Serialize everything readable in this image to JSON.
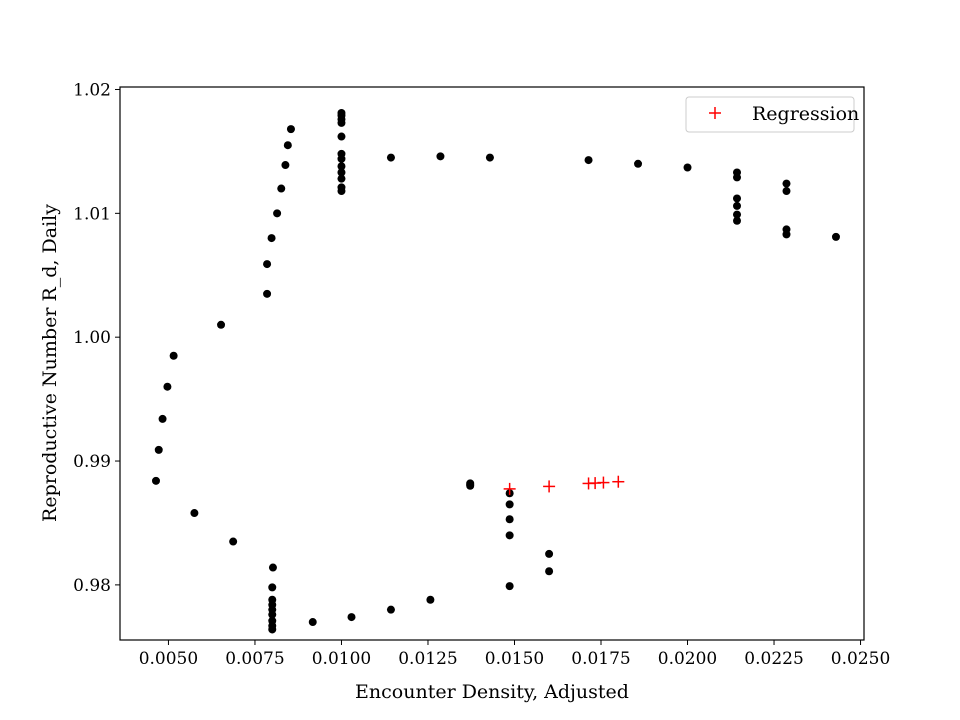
{
  "chart_data": {
    "type": "scatter",
    "xlabel": "Encounter Density, Adjusted",
    "ylabel": "Reproductive Number R_d, Daily",
    "xlim": [
      0.0036,
      0.0251
    ],
    "ylim": [
      0.97555,
      1.0202
    ],
    "xticks": [
      {
        "value": 0.005,
        "label": "0.0050"
      },
      {
        "value": 0.0075,
        "label": "0.0075"
      },
      {
        "value": 0.01,
        "label": "0.0100"
      },
      {
        "value": 0.0125,
        "label": "0.0125"
      },
      {
        "value": 0.015,
        "label": "0.0150"
      },
      {
        "value": 0.0175,
        "label": "0.0175"
      },
      {
        "value": 0.02,
        "label": "0.0200"
      },
      {
        "value": 0.0225,
        "label": "0.0225"
      },
      {
        "value": 0.025,
        "label": "0.0250"
      }
    ],
    "yticks": [
      {
        "value": 0.98,
        "label": "0.98"
      },
      {
        "value": 0.99,
        "label": "0.99"
      },
      {
        "value": 1.0,
        "label": "1.00"
      },
      {
        "value": 1.01,
        "label": "1.01"
      },
      {
        "value": 1.02,
        "label": "1.02"
      }
    ],
    "legend": {
      "position": "top-right",
      "entries": [
        "Regression"
      ]
    },
    "grid": false,
    "series": [
      {
        "color": "#000000",
        "marker": "dot",
        "points": [
          [
            0.01,
            1.0181
          ],
          [
            0.01,
            1.0179
          ],
          [
            0.01,
            1.0176
          ],
          [
            0.01,
            1.0173
          ],
          [
            0.01,
            1.0162
          ],
          [
            0.01,
            1.0148
          ],
          [
            0.01,
            1.0144
          ],
          [
            0.01,
            1.0138
          ],
          [
            0.01,
            1.0133
          ],
          [
            0.01,
            1.0128
          ],
          [
            0.01,
            1.0121
          ],
          [
            0.01,
            1.0118
          ],
          [
            0.00854,
            1.0168
          ],
          [
            0.00845,
            1.0155
          ],
          [
            0.00838,
            1.0139
          ],
          [
            0.00826,
            1.012
          ],
          [
            0.00814,
            1.01
          ],
          [
            0.00798,
            1.008
          ],
          [
            0.00785,
            1.0059
          ],
          [
            0.00785,
            1.0035
          ],
          [
            0.00652,
            1.001
          ],
          [
            0.00515,
            0.9985
          ],
          [
            0.00497,
            0.996
          ],
          [
            0.00483,
            0.9934
          ],
          [
            0.00472,
            0.9909
          ],
          [
            0.00464,
            0.9884
          ],
          [
            0.00575,
            0.9858
          ],
          [
            0.00687,
            0.9835
          ],
          [
            0.00802,
            0.9814
          ],
          [
            0.008,
            0.9798
          ],
          [
            0.008,
            0.9788
          ],
          [
            0.008,
            0.9784
          ],
          [
            0.008,
            0.978
          ],
          [
            0.008,
            0.9776
          ],
          [
            0.008,
            0.9771
          ],
          [
            0.008,
            0.9767
          ],
          [
            0.008,
            0.9764
          ],
          [
            0.00917,
            0.977
          ],
          [
            0.01029,
            0.9774
          ],
          [
            0.01143,
            0.978
          ],
          [
            0.01257,
            0.9788
          ],
          [
            0.01372,
            0.9882
          ],
          [
            0.01372,
            0.9881
          ],
          [
            0.01372,
            0.988
          ],
          [
            0.01486,
            0.9874
          ],
          [
            0.01486,
            0.9865
          ],
          [
            0.01486,
            0.9853
          ],
          [
            0.01486,
            0.984
          ],
          [
            0.01486,
            0.9799
          ],
          [
            0.016,
            0.9825
          ],
          [
            0.016,
            0.9811
          ],
          [
            0.01143,
            1.0145
          ],
          [
            0.01286,
            1.0146
          ],
          [
            0.01429,
            1.0145
          ],
          [
            0.01714,
            1.0143
          ],
          [
            0.01857,
            1.014
          ],
          [
            0.02,
            1.0137
          ],
          [
            0.02143,
            1.0133
          ],
          [
            0.02143,
            1.0129
          ],
          [
            0.02143,
            1.0112
          ],
          [
            0.02143,
            1.0106
          ],
          [
            0.02143,
            1.0099
          ],
          [
            0.02143,
            1.0094
          ],
          [
            0.02286,
            1.0124
          ],
          [
            0.02286,
            1.0118
          ],
          [
            0.02286,
            1.0087
          ],
          [
            0.02286,
            1.0083
          ],
          [
            0.02429,
            1.0081
          ]
        ]
      },
      {
        "name": "Regression",
        "color": "#ff0000",
        "marker": "plus",
        "points": [
          [
            0.01486,
            0.98775
          ],
          [
            0.016,
            0.98795
          ],
          [
            0.01714,
            0.98819
          ],
          [
            0.01733,
            0.98822
          ],
          [
            0.01757,
            0.98826
          ],
          [
            0.018,
            0.98833
          ]
        ]
      }
    ]
  }
}
